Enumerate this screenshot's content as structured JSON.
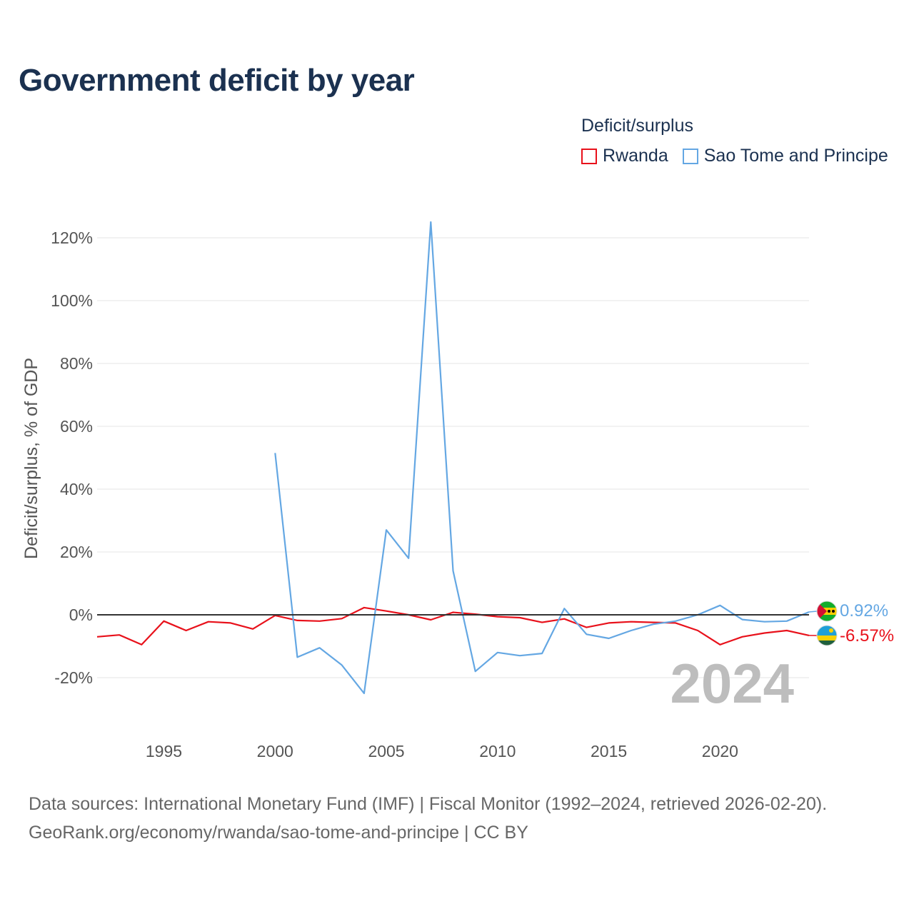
{
  "title": "Government deficit by year",
  "legend": {
    "title": "Deficit/surplus",
    "items": [
      {
        "name": "Rwanda",
        "color": "#e8111b"
      },
      {
        "name": "Sao Tome and Principe",
        "color": "#64a7e3"
      }
    ]
  },
  "footer": {
    "line1": "Data sources: International Monetary Fund (IMF) | Fiscal Monitor (1992–2024, retrieved 2026-02-20).",
    "line2": "GeoRank.org/economy/rwanda/sao-tome-and-principe | CC BY"
  },
  "chart_data": {
    "type": "line",
    "title": "Government deficit by year",
    "ylabel": "Deficit/surplus, % of GDP",
    "xlabel": "",
    "xlim": [
      1992,
      2024
    ],
    "ylim": [
      -30,
      125
    ],
    "x_ticks": [
      1995,
      2000,
      2005,
      2010,
      2015,
      2020
    ],
    "y_ticks": [
      -20,
      0,
      20,
      40,
      60,
      80,
      100,
      120
    ],
    "y_tick_labels": [
      "-20%",
      "0%",
      "20%",
      "40%",
      "60%",
      "80%",
      "100%",
      "120%"
    ],
    "x_tick_labels": [
      "1995",
      "2000",
      "2005",
      "2010",
      "2015",
      "2020"
    ],
    "current_year_label": "2024",
    "series": [
      {
        "name": "Rwanda",
        "color": "#e8111b",
        "end_label": "-6.57%",
        "x": [
          1992,
          1993,
          1994,
          1995,
          1996,
          1997,
          1998,
          1999,
          2000,
          2001,
          2002,
          2003,
          2004,
          2005,
          2006,
          2007,
          2008,
          2009,
          2010,
          2011,
          2012,
          2013,
          2014,
          2015,
          2016,
          2017,
          2018,
          2019,
          2020,
          2021,
          2022,
          2023,
          2024
        ],
        "values": [
          -7.0,
          -6.4,
          -9.5,
          -2.0,
          -5.0,
          -2.2,
          -2.6,
          -4.5,
          -0.2,
          -1.8,
          -2.0,
          -1.2,
          2.3,
          1.2,
          0.0,
          -1.6,
          0.8,
          0.2,
          -0.6,
          -0.9,
          -2.4,
          -1.3,
          -4.0,
          -2.6,
          -2.2,
          -2.4,
          -2.6,
          -5.0,
          -9.5,
          -7.0,
          -5.8,
          -5.0,
          -6.57
        ]
      },
      {
        "name": "Sao Tome and Principe",
        "color": "#64a7e3",
        "end_label": "0.92%",
        "x": [
          2000,
          2001,
          2002,
          2003,
          2004,
          2005,
          2006,
          2007,
          2008,
          2009,
          2010,
          2011,
          2012,
          2013,
          2014,
          2015,
          2016,
          2017,
          2018,
          2019,
          2020,
          2021,
          2022,
          2023,
          2024
        ],
        "values": [
          51.5,
          -13.5,
          -10.5,
          -16.0,
          -25.0,
          27.0,
          18.0,
          125.0,
          14.0,
          -18.0,
          -12.0,
          -13.0,
          -12.3,
          2.0,
          -6.2,
          -7.5,
          -5.0,
          -3.0,
          -2.0,
          0.0,
          3.0,
          -1.5,
          -2.2,
          -2.0,
          0.92
        ]
      }
    ]
  }
}
